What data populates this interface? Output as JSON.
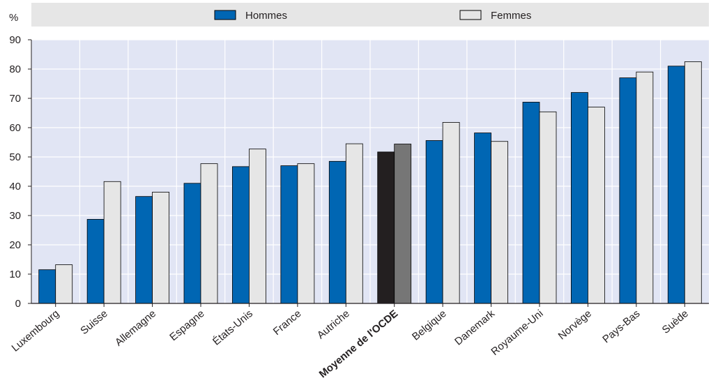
{
  "chart_data": {
    "type": "bar",
    "ylabel": "%",
    "ylim": [
      0,
      90
    ],
    "yticks": [
      0,
      10,
      20,
      30,
      40,
      50,
      60,
      70,
      80,
      90
    ],
    "grid": true,
    "legend_position": "top",
    "categories": [
      "Luxembourg",
      "Suisse",
      "Allemagne",
      "Espagne",
      "États-Unis",
      "France",
      "Autriche",
      "Moyenne de l'OCDE",
      "Belgique",
      "Danemark",
      "Royaume-Uni",
      "Norvège",
      "Pays-Bas",
      "Suède"
    ],
    "highlight_category": "Moyenne de l'OCDE",
    "series": [
      {
        "name": "Hommes",
        "values": [
          11.5,
          28.7,
          36.5,
          41.0,
          46.7,
          47.0,
          48.5,
          51.7,
          55.6,
          58.2,
          68.7,
          72.0,
          77.0,
          81.0
        ]
      },
      {
        "name": "Femmes",
        "values": [
          13.2,
          41.6,
          38.0,
          47.7,
          52.7,
          47.7,
          54.5,
          54.4,
          61.8,
          55.3,
          65.4,
          67.0,
          79.0,
          82.5
        ]
      }
    ],
    "colors": {
      "hommes": "#0066b3",
      "femmes": "#e6e6e6",
      "hommes_highlight": "#231f20",
      "femmes_highlight": "#767676",
      "plot_background": "#e1e5f4",
      "legend_background": "#e6e6e6",
      "gridline": "#ffffff",
      "bar_outline": "#000000"
    }
  }
}
